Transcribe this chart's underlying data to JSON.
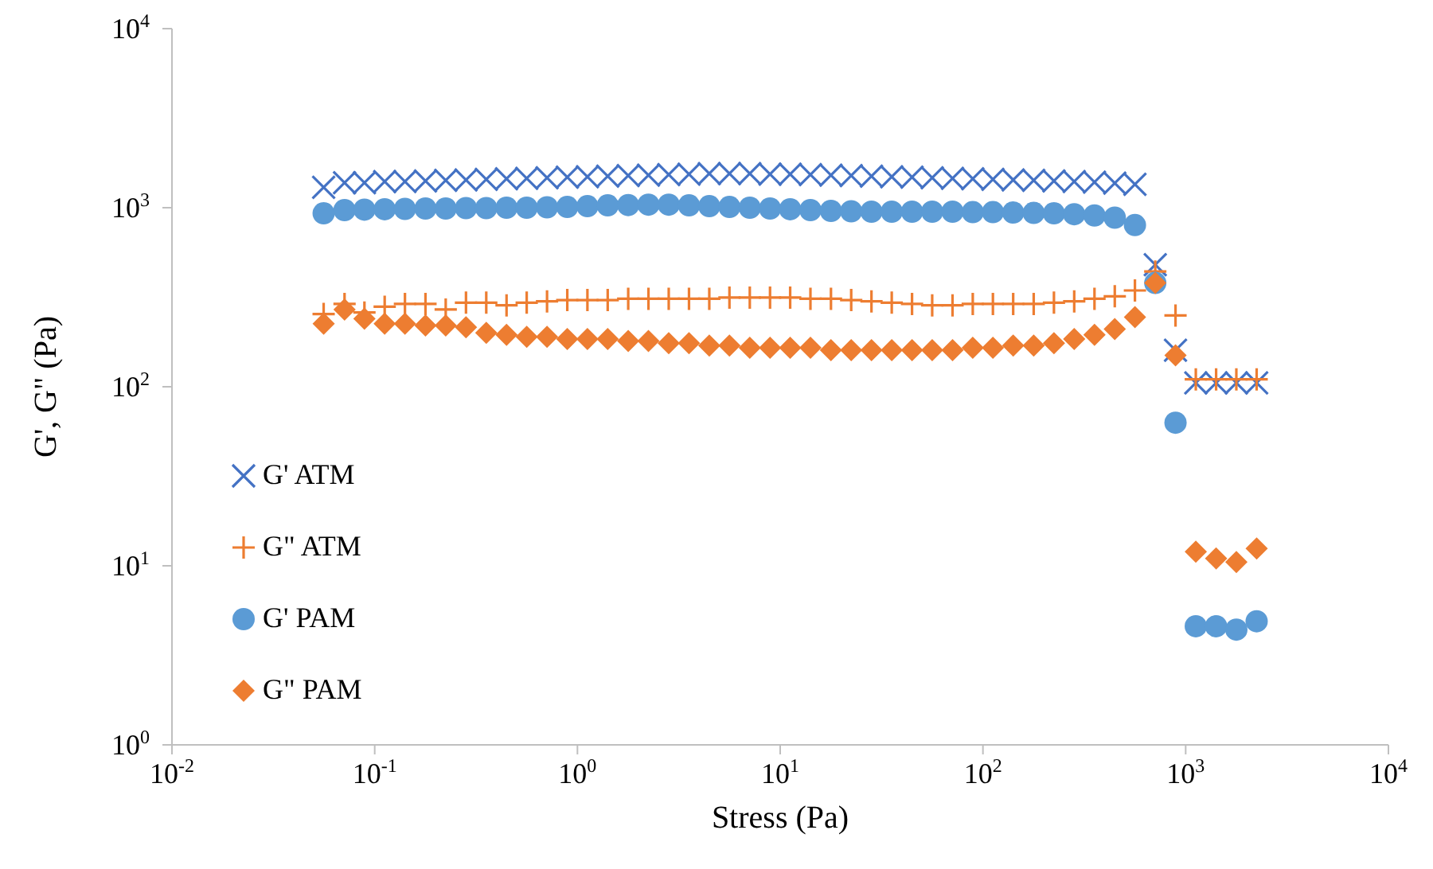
{
  "chart_data": {
    "type": "scatter",
    "xlabel": "Stress (Pa)",
    "ylabel": "G', G\" (Pa)",
    "log": "xy",
    "legend": "left",
    "x": [
      0.056,
      0.071,
      0.089,
      0.112,
      0.141,
      0.178,
      0.224,
      0.282,
      0.355,
      0.447,
      0.562,
      0.708,
      0.891,
      1.12,
      1.41,
      1.78,
      2.24,
      2.82,
      3.55,
      4.47,
      5.62,
      7.08,
      8.91,
      11.2,
      14.1,
      17.8,
      22.4,
      28.2,
      35.5,
      44.7,
      56.2,
      70.8,
      89.1,
      112,
      141,
      178,
      224,
      282,
      355,
      447,
      562,
      708,
      891,
      1122,
      1413,
      1778,
      2239
    ],
    "xlim": [
      0.01,
      10000
    ],
    "xticks": [
      {
        "value": 0.01,
        "label": "10$^{-2}$"
      },
      {
        "value": 0.1,
        "label": "10$^{-1}$"
      },
      {
        "value": 1,
        "label": "10$^{0}$"
      },
      {
        "value": 10,
        "label": "10$^{1}$"
      },
      {
        "value": 100,
        "label": "10$^{2}$"
      },
      {
        "value": 1000,
        "label": "10$^{3}$"
      },
      {
        "value": 10000,
        "label": "10$^{4}$"
      }
    ],
    "ylim": [
      1,
      10000
    ],
    "yticks": [
      {
        "value": 1,
        "label": "10$^{0}$"
      },
      {
        "value": 10,
        "label": "10$^{1}$"
      },
      {
        "value": 100,
        "label": "10$^{2}$"
      },
      {
        "value": 1000,
        "label": "10$^{3}$"
      },
      {
        "value": 10000,
        "label": "10$^{4}$"
      }
    ],
    "series": [
      {
        "name": "G' ATM",
        "color": "#4472c4",
        "marker": "cross",
        "values": [
          1300,
          1380,
          1380,
          1400,
          1400,
          1410,
          1420,
          1430,
          1440,
          1450,
          1460,
          1470,
          1480,
          1490,
          1500,
          1510,
          1520,
          1530,
          1540,
          1550,
          1550,
          1550,
          1540,
          1540,
          1530,
          1520,
          1510,
          1500,
          1490,
          1480,
          1470,
          1460,
          1450,
          1440,
          1430,
          1420,
          1410,
          1400,
          1390,
          1370,
          1350,
          480,
          160,
          105,
          105,
          105,
          105
        ]
      },
      {
        "name": "G\" ATM",
        "color": "#ed7d31",
        "marker": "plus",
        "values": [
          255,
          290,
          260,
          280,
          290,
          290,
          270,
          295,
          295,
          285,
          295,
          300,
          305,
          305,
          305,
          310,
          310,
          310,
          310,
          310,
          315,
          315,
          315,
          315,
          310,
          310,
          305,
          300,
          295,
          290,
          285,
          285,
          290,
          290,
          290,
          290,
          295,
          300,
          310,
          320,
          345,
          440,
          250,
          110,
          110,
          110,
          110
        ]
      },
      {
        "name": "G' PAM",
        "color": "#5b9bd5",
        "marker": "circle",
        "values": [
          930,
          970,
          975,
          980,
          985,
          990,
          990,
          995,
          995,
          1000,
          1000,
          1005,
          1010,
          1020,
          1030,
          1035,
          1040,
          1040,
          1030,
          1020,
          1010,
          1000,
          990,
          980,
          970,
          960,
          955,
          950,
          950,
          950,
          950,
          950,
          945,
          945,
          940,
          935,
          930,
          920,
          905,
          880,
          800,
          380,
          63,
          4.6,
          4.6,
          4.4,
          4.9
        ]
      },
      {
        "name": "G\" PAM",
        "color": "#ed7d31",
        "marker": "diamond",
        "values": [
          225,
          270,
          240,
          225,
          225,
          220,
          220,
          215,
          200,
          195,
          190,
          190,
          185,
          185,
          185,
          180,
          180,
          175,
          175,
          170,
          170,
          165,
          165,
          165,
          165,
          160,
          160,
          160,
          160,
          160,
          160,
          160,
          165,
          165,
          170,
          170,
          175,
          185,
          195,
          210,
          245,
          380,
          150,
          12,
          11,
          10.5,
          12.5
        ]
      }
    ]
  }
}
